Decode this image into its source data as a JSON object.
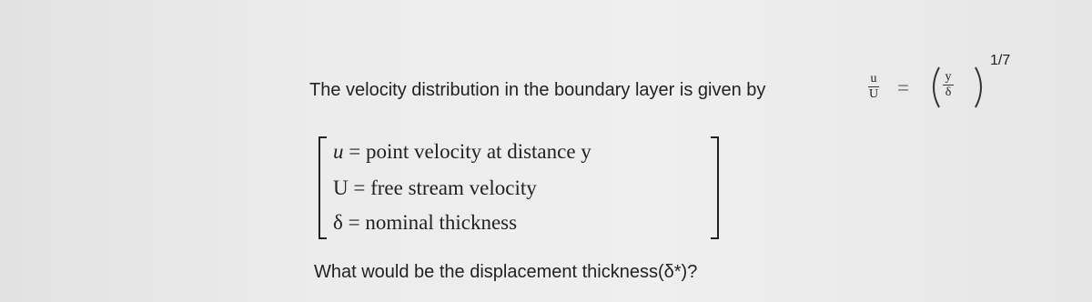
{
  "question": {
    "intro": "The velocity distribution in the boundary layer is given by",
    "formula": {
      "numerator": "u",
      "denominator": "U",
      "equals": "=",
      "inner_numerator": "y",
      "inner_denominator": "δ",
      "exponent": "1/7"
    },
    "definitions": [
      {
        "symbol": "u",
        "equals": "=",
        "text": "point velocity at distance y"
      },
      {
        "symbol": "U",
        "equals": "=",
        "text": "free stream velocity"
      },
      {
        "symbol": "δ",
        "equals": "=",
        "text": "nominal thickness"
      }
    ],
    "prompt": "What would be the displacement thickness(δ*)?"
  }
}
